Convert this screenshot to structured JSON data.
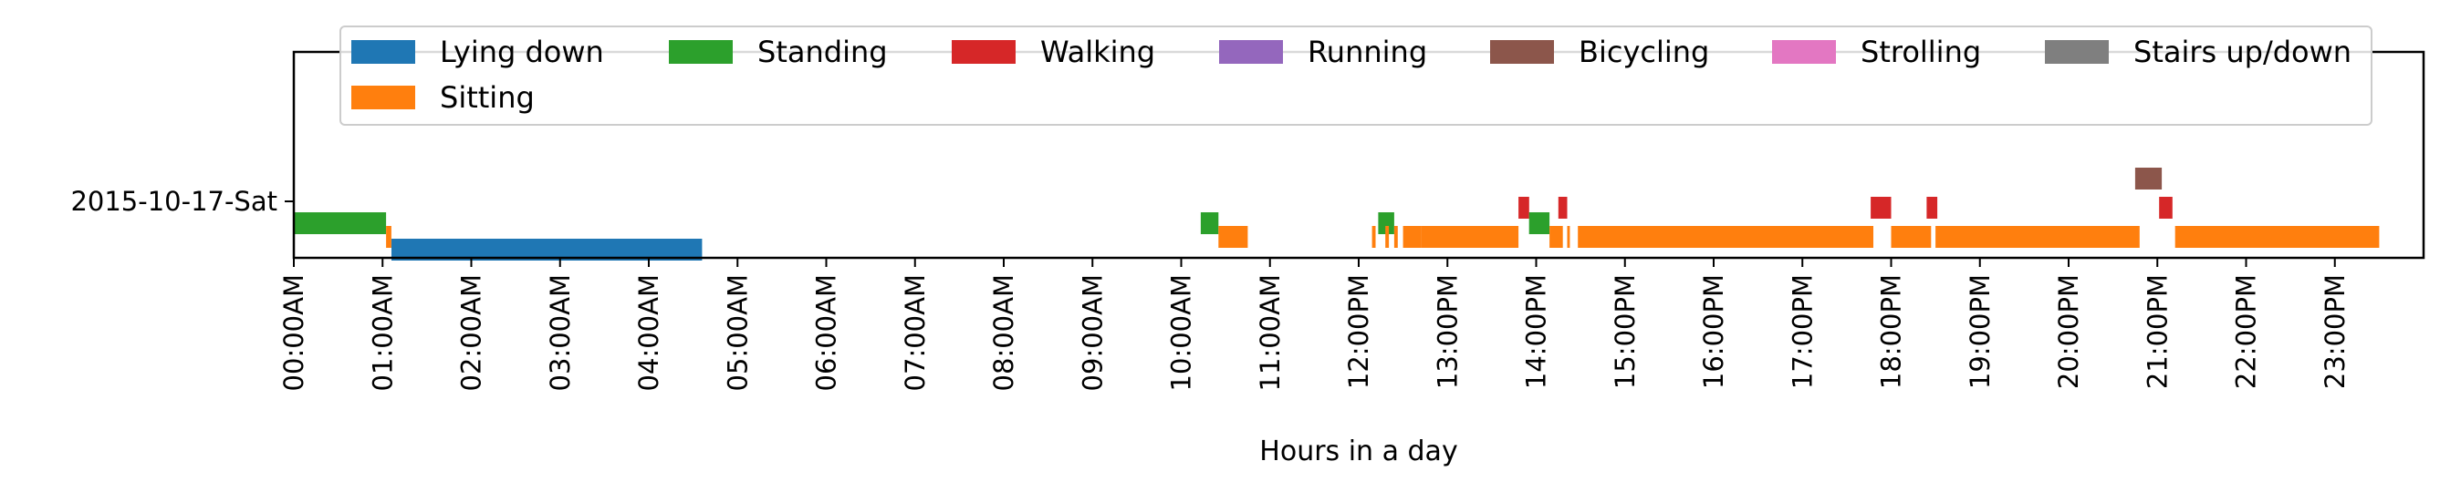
{
  "chart_data": {
    "type": "timeline",
    "title": "",
    "xlabel": "Hours in a day",
    "ylabel": "",
    "xlim": [
      0,
      24
    ],
    "grid": false,
    "legend_position": "top",
    "x_tick_labels": [
      "00:00AM",
      "01:00AM",
      "02:00AM",
      "03:00AM",
      "04:00AM",
      "05:00AM",
      "06:00AM",
      "07:00AM",
      "08:00AM",
      "09:00AM",
      "10:00AM",
      "11:00AM",
      "12:00PM",
      "13:00PM",
      "14:00PM",
      "15:00PM",
      "16:00PM",
      "17:00PM",
      "18:00PM",
      "19:00PM",
      "20:00PM",
      "21:00PM",
      "22:00PM",
      "23:00PM"
    ],
    "rows": [
      "2015-10-17-Sat"
    ],
    "activities": [
      {
        "name": "Lying down",
        "color": "#1f77b4"
      },
      {
        "name": "Standing",
        "color": "#2ca02c"
      },
      {
        "name": "Walking",
        "color": "#d62728"
      },
      {
        "name": "Running",
        "color": "#9467bd"
      },
      {
        "name": "Bicycling",
        "color": "#8c564b"
      },
      {
        "name": "Strolling",
        "color": "#e377c2"
      },
      {
        "name": "Stairs up/down",
        "color": "#7f7f7f"
      },
      {
        "name": "Sitting",
        "color": "#ff7f0e"
      }
    ],
    "segments": [
      {
        "activity": "Standing",
        "start": 0.0,
        "end": 1.04
      },
      {
        "activity": "Sitting",
        "start": 1.04,
        "end": 1.1
      },
      {
        "activity": "Lying down",
        "start": 1.1,
        "end": 4.6
      },
      {
        "activity": "Standing",
        "start": 10.22,
        "end": 10.42
      },
      {
        "activity": "Sitting",
        "start": 10.42,
        "end": 10.75
      },
      {
        "activity": "Sitting",
        "start": 12.15,
        "end": 12.19
      },
      {
        "activity": "Standing",
        "start": 12.22,
        "end": 12.4
      },
      {
        "activity": "Sitting",
        "start": 12.3,
        "end": 12.34
      },
      {
        "activity": "Sitting",
        "start": 12.4,
        "end": 12.44
      },
      {
        "activity": "Sitting",
        "start": 12.5,
        "end": 12.7
      },
      {
        "activity": "Sitting",
        "start": 12.7,
        "end": 13.8
      },
      {
        "activity": "Walking",
        "start": 13.8,
        "end": 13.92
      },
      {
        "activity": "Standing",
        "start": 13.92,
        "end": 14.15
      },
      {
        "activity": "Sitting",
        "start": 14.15,
        "end": 14.3
      },
      {
        "activity": "Walking",
        "start": 14.25,
        "end": 14.35
      },
      {
        "activity": "Sitting",
        "start": 14.35,
        "end": 14.38
      },
      {
        "activity": "Sitting",
        "start": 14.47,
        "end": 17.8
      },
      {
        "activity": "Walking",
        "start": 17.77,
        "end": 18.0
      },
      {
        "activity": "Sitting",
        "start": 18.0,
        "end": 18.45
      },
      {
        "activity": "Walking",
        "start": 18.4,
        "end": 18.52
      },
      {
        "activity": "Sitting",
        "start": 18.5,
        "end": 20.8
      },
      {
        "activity": "Bicycling",
        "start": 20.75,
        "end": 21.05
      },
      {
        "activity": "Walking",
        "start": 21.02,
        "end": 21.17
      },
      {
        "activity": "Sitting",
        "start": 21.2,
        "end": 23.5
      }
    ]
  }
}
